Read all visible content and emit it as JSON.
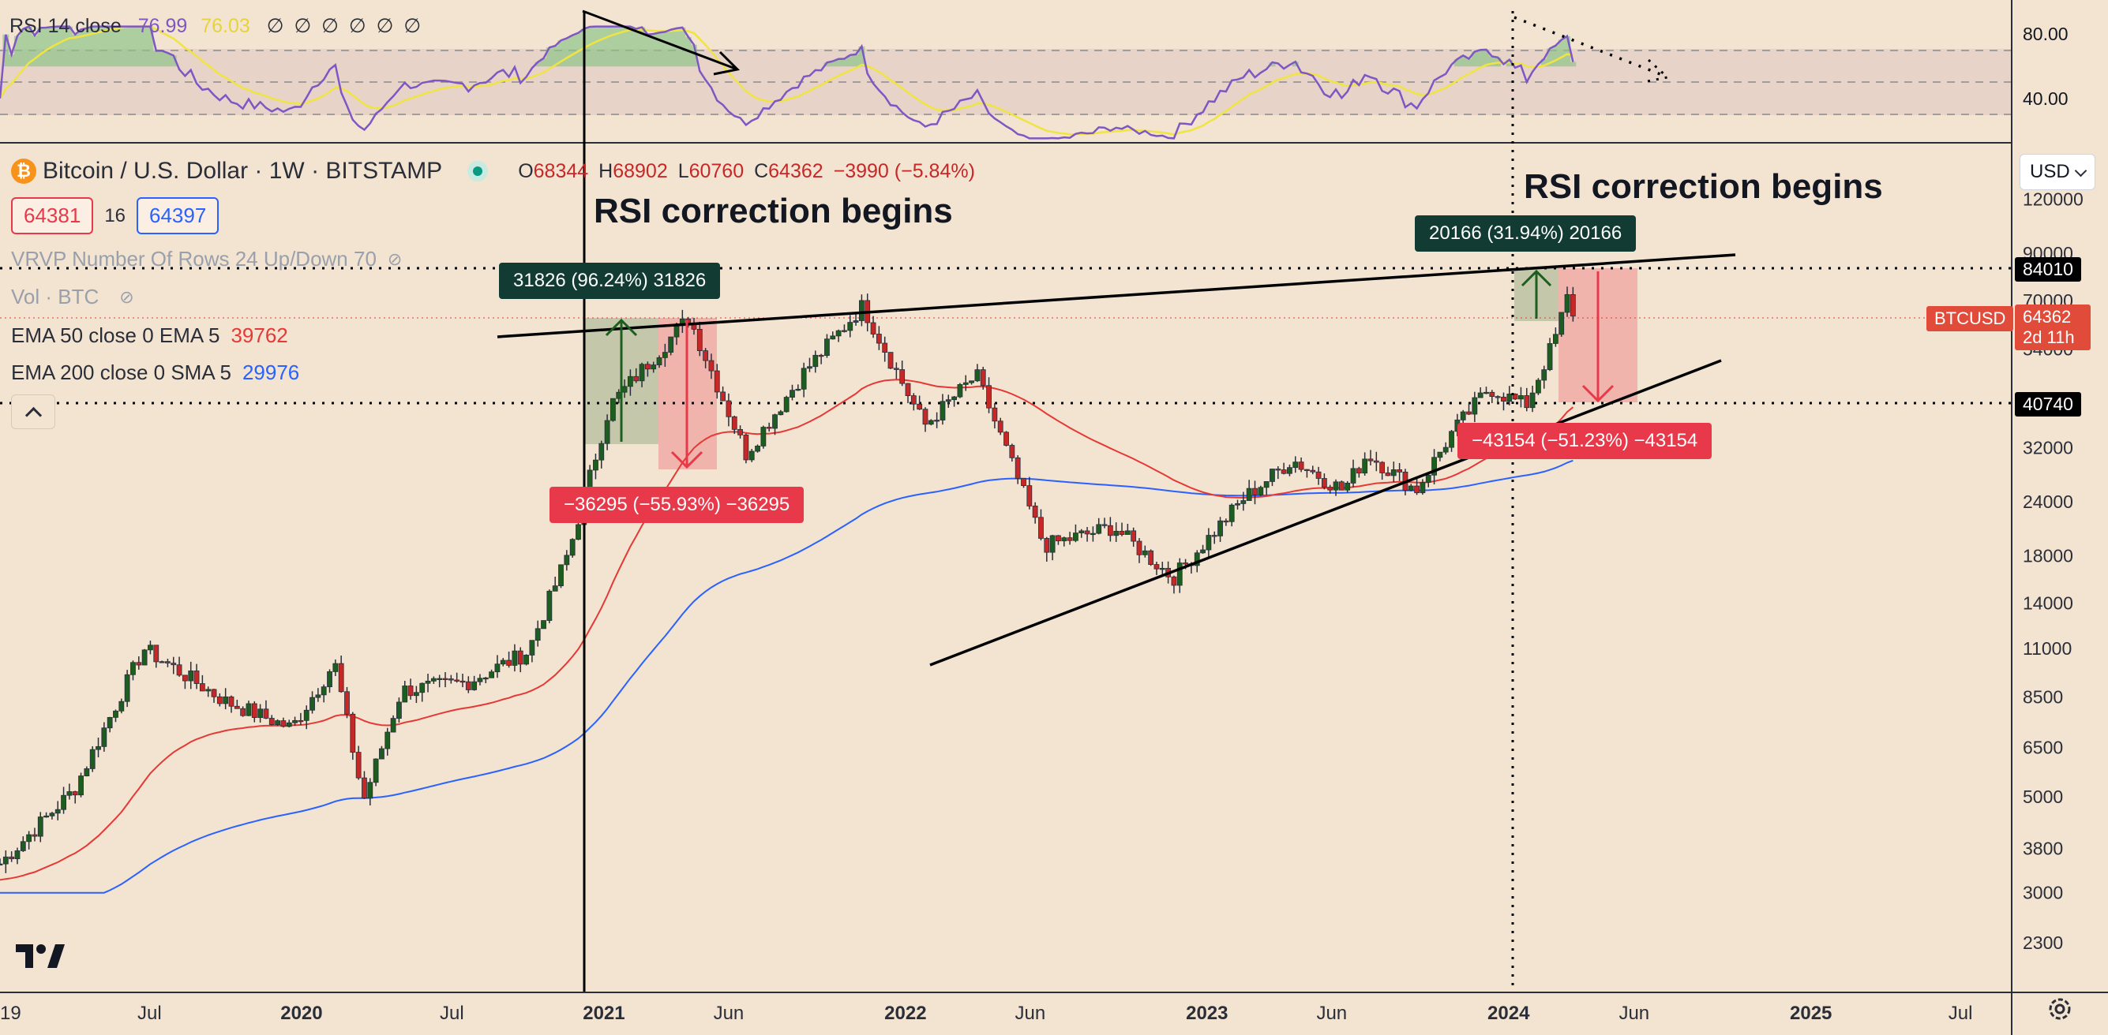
{
  "rsi": {
    "label": "RSI 14 close",
    "value1": "76.99",
    "value2": "76.03",
    "hidden_values": "∅ ∅ ∅ ∅ ∅ ∅",
    "axis_ticks": [
      "80.00",
      "40.00"
    ]
  },
  "header": {
    "symbol": "Bitcoin / U.S. Dollar · 1W · BITSTAMP",
    "ohlc": {
      "o_label": "O",
      "o": "68344",
      "h_label": "H",
      "h": "68902",
      "l_label": "L",
      "l": "60760",
      "c_label": "C",
      "c": "64362",
      "change": "−3990 (−5.84%)"
    },
    "sell_price": "64381",
    "spread": "16",
    "buy_price": "64397"
  },
  "indicators": {
    "vrvp": "VRVP Number Of Rows 24 Up/Down 70",
    "vol": "Vol · BTC",
    "ema50_label": "EMA 50 close 0 EMA 5",
    "ema50_value": "39762",
    "ema200_label": "EMA 200 close 0 SMA 5",
    "ema200_value": "29976"
  },
  "annotations": {
    "left_title": "RSI correction begins",
    "right_title": "RSI correction begins",
    "gain_left": "31826 (96.24%) 31826",
    "loss_left": "−36295 (−55.93%) −36295",
    "gain_right": "20166 (31.94%) 20166",
    "loss_right": "−43154 (−51.23%) −43154"
  },
  "price_axis": {
    "currency": "USD",
    "ticks": [
      "120000",
      "90000",
      "70000",
      "54000",
      "32000",
      "24000",
      "18000",
      "14000",
      "11000",
      "8500",
      "6500",
      "5000",
      "3800",
      "3000",
      "2300"
    ],
    "level_upper": "84010",
    "level_lower": "40740",
    "current_symbol": "BTCUSD",
    "current_price": "64362",
    "countdown": "2d 11h"
  },
  "time_axis": {
    "labels": [
      "19",
      "Jul",
      "2020",
      "Jul",
      "2021",
      "Jun",
      "2022",
      "Jun",
      "2023",
      "Jun",
      "2024",
      "Jun",
      "2025",
      "Jul"
    ]
  },
  "colors": {
    "background": "#f3e3d1",
    "up_candle": "#1b5e20",
    "down_candle": "#c62828",
    "ema50": "#e53935",
    "ema200": "#2962ff",
    "rsi": "#7e57c2",
    "rsi_ma": "#f0e442",
    "gain_box": "#123c33",
    "loss_box": "#e8394a"
  },
  "chart_data": {
    "type": "candlestick",
    "title": "Bitcoin / U.S. Dollar · 1W · BITSTAMP",
    "scale": "log",
    "ylim": [
      1900,
      160000
    ],
    "x_range": [
      "2019-01-01",
      "2025-09-01"
    ],
    "approx_close_path": [
      {
        "date": "2019-01-01",
        "price": 3500
      },
      {
        "date": "2019-04-01",
        "price": 5200
      },
      {
        "date": "2019-06-24",
        "price": 11000
      },
      {
        "date": "2019-10-01",
        "price": 8300
      },
      {
        "date": "2019-12-20",
        "price": 7200
      },
      {
        "date": "2020-02-10",
        "price": 10200
      },
      {
        "date": "2020-03-16",
        "price": 4900
      },
      {
        "date": "2020-05-01",
        "price": 8800
      },
      {
        "date": "2020-07-20",
        "price": 9200
      },
      {
        "date": "2020-10-01",
        "price": 10800
      },
      {
        "date": "2020-11-20",
        "price": 18500
      },
      {
        "date": "2021-01-08",
        "price": 40000
      },
      {
        "date": "2021-04-14",
        "price": 64000
      },
      {
        "date": "2021-06-22",
        "price": 31000
      },
      {
        "date": "2021-09-01",
        "price": 48000
      },
      {
        "date": "2021-11-10",
        "price": 68000
      },
      {
        "date": "2022-01-24",
        "price": 36000
      },
      {
        "date": "2022-03-28",
        "price": 47000
      },
      {
        "date": "2022-06-18",
        "price": 19000
      },
      {
        "date": "2022-09-10",
        "price": 21000
      },
      {
        "date": "2022-11-21",
        "price": 16000
      },
      {
        "date": "2023-02-15",
        "price": 24500
      },
      {
        "date": "2023-04-14",
        "price": 30000
      },
      {
        "date": "2023-06-15",
        "price": 25500
      },
      {
        "date": "2023-07-14",
        "price": 31000
      },
      {
        "date": "2023-09-11",
        "price": 25500
      },
      {
        "date": "2023-10-24",
        "price": 34500
      },
      {
        "date": "2023-12-08",
        "price": 44000
      },
      {
        "date": "2024-01-22",
        "price": 40000
      },
      {
        "date": "2024-02-26",
        "price": 57000
      },
      {
        "date": "2024-03-14",
        "price": 73000
      },
      {
        "date": "2024-03-20",
        "price": 64362
      }
    ],
    "series": [
      {
        "name": "EMA 50",
        "last_value": 39762
      },
      {
        "name": "EMA 200",
        "last_value": 29976
      }
    ],
    "levels": [
      84010,
      40740
    ],
    "rsi_ticks": [
      80,
      40
    ]
  }
}
